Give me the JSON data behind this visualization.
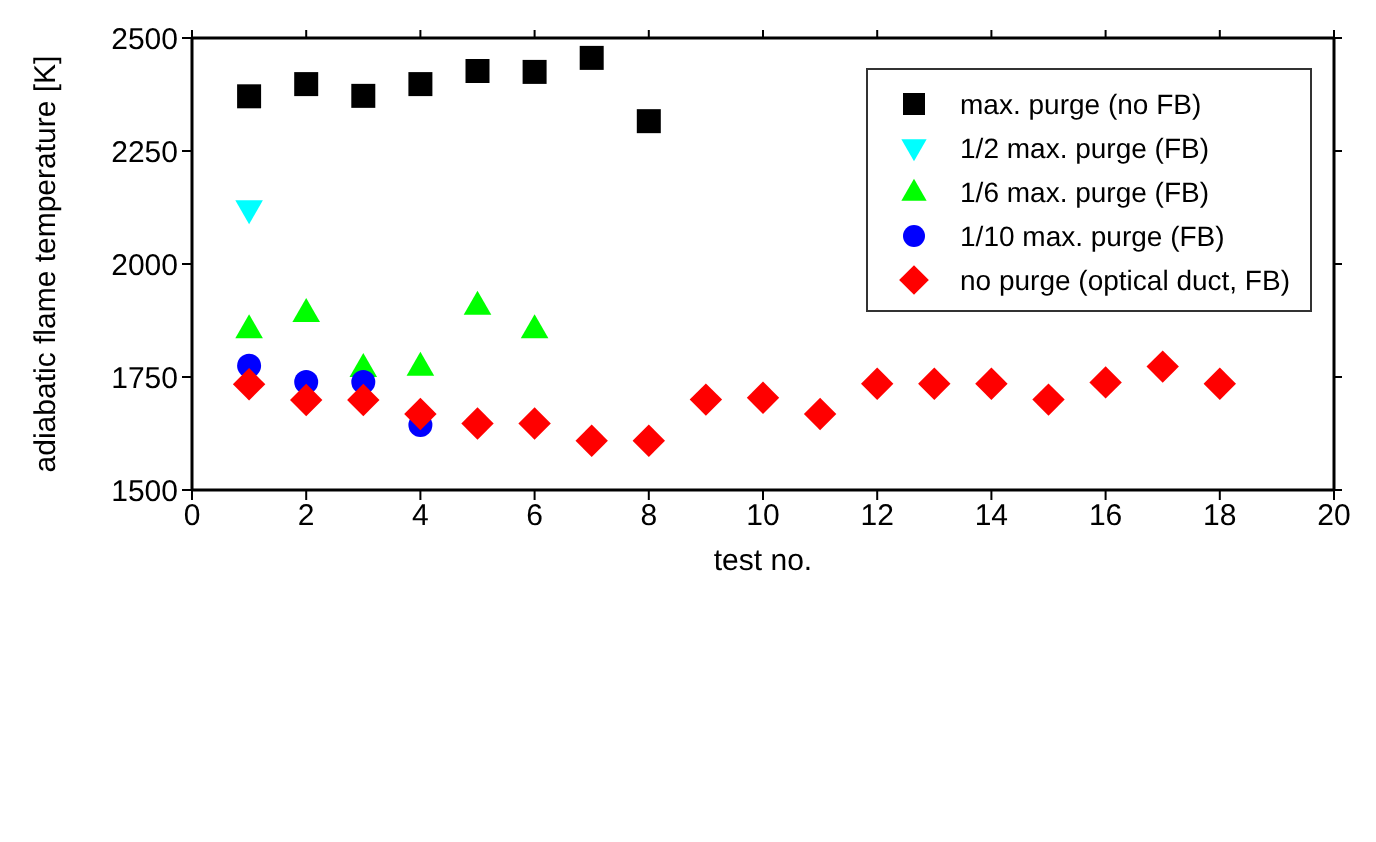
{
  "chart_data": {
    "type": "scatter",
    "xlabel": "test no.",
    "ylabel": "adiabatic flame temperature [K]",
    "xlim": [
      0,
      20
    ],
    "xticks": [
      0,
      2,
      4,
      6,
      8,
      10,
      12,
      14,
      16,
      18,
      20
    ],
    "ylim": [
      1500,
      2500
    ],
    "yticks": [
      1500,
      1750,
      2000,
      2250,
      2500
    ],
    "grid": false,
    "legend": "top right",
    "series": [
      {
        "name": "max. purge (no FB)",
        "color": "#000000",
        "marker": "square",
        "x": [
          1,
          2,
          3,
          4,
          5,
          6,
          7,
          8
        ],
        "values": [
          2371,
          2398,
          2372,
          2398,
          2427,
          2425,
          2456,
          2316
        ]
      },
      {
        "name": "1/2 max. purge (FB)",
        "color": "#00ffff",
        "marker": "triangle-down",
        "x": [
          1
        ],
        "values": [
          2120
        ]
      },
      {
        "name": "1/6 max. purge (FB)",
        "color": "#00ff00",
        "marker": "triangle",
        "x": [
          1,
          2,
          3,
          4,
          5,
          6
        ],
        "values": [
          1857,
          1893,
          1771,
          1774,
          1909,
          1857
        ]
      },
      {
        "name": "1/10 max. purge (FB)",
        "color": "#0000ff",
        "marker": "circle",
        "x": [
          1,
          2,
          3,
          4
        ],
        "values": [
          1775,
          1739,
          1739,
          1644
        ]
      },
      {
        "name": "no purge (optical duct, FB)",
        "color": "#ff0000",
        "marker": "diamond",
        "x": [
          1,
          2,
          3,
          4,
          5,
          6,
          7,
          8,
          9,
          10,
          11,
          12,
          13,
          14,
          15,
          16,
          17,
          18
        ],
        "values": [
          1734,
          1699,
          1699,
          1668,
          1647,
          1647,
          1609,
          1609,
          1700,
          1704,
          1668,
          1735,
          1735,
          1735,
          1700,
          1738,
          1773,
          1735
        ]
      }
    ]
  }
}
